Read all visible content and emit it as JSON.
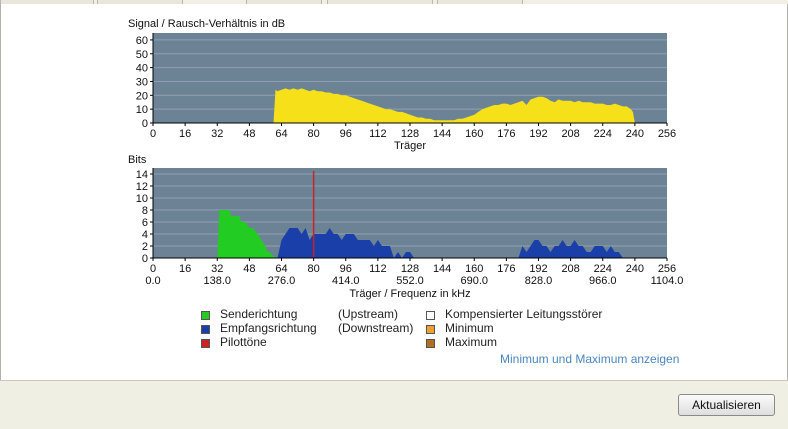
{
  "chart_data": [
    {
      "type": "area",
      "title": "Signal / Rausch-Verhältnis in dB",
      "xlabel": "Träger",
      "ylabel": "",
      "xlim": [
        0,
        256
      ],
      "ylim": [
        0,
        65
      ],
      "x_ticks": [
        0,
        16,
        32,
        48,
        64,
        80,
        96,
        112,
        128,
        144,
        160,
        176,
        192,
        208,
        224,
        240,
        256
      ],
      "y_ticks": [
        0,
        10,
        20,
        30,
        40,
        50,
        60
      ],
      "grid": true,
      "series": [
        {
          "color": "#f5e01a",
          "x": [
            0,
            60,
            61,
            62,
            64,
            66,
            68,
            70,
            72,
            74,
            76,
            78,
            80,
            82,
            84,
            86,
            88,
            90,
            92,
            94,
            96,
            98,
            100,
            102,
            104,
            106,
            108,
            110,
            112,
            114,
            116,
            118,
            120,
            122,
            124,
            126,
            128,
            130,
            132,
            134,
            136,
            138,
            140,
            142,
            144,
            146,
            148,
            150,
            152,
            154,
            156,
            158,
            160,
            162,
            164,
            166,
            168,
            170,
            172,
            174,
            176,
            178,
            180,
            182,
            184,
            186,
            188,
            190,
            192,
            194,
            196,
            198,
            200,
            202,
            204,
            206,
            208,
            210,
            212,
            214,
            216,
            218,
            220,
            222,
            224,
            226,
            228,
            230,
            232,
            234,
            236,
            238,
            239,
            240,
            256
          ],
          "values": [
            0,
            0,
            24,
            23,
            24,
            25,
            24,
            25,
            24,
            25,
            24,
            23,
            24,
            23,
            23,
            22,
            22,
            21,
            21,
            20,
            20,
            19,
            18,
            17,
            16,
            15,
            14,
            13,
            12,
            11,
            10,
            10,
            9,
            8,
            8,
            7,
            6,
            5,
            4,
            4,
            3,
            3,
            2,
            2,
            2,
            2,
            2,
            2,
            3,
            3,
            4,
            5,
            6,
            8,
            10,
            11,
            12,
            13,
            13,
            14,
            14,
            13,
            14,
            15,
            16,
            13,
            17,
            18,
            19,
            19,
            18,
            16,
            15,
            17,
            16,
            16,
            16,
            15,
            16,
            15,
            15,
            15,
            14,
            14,
            14,
            13,
            13,
            14,
            13,
            12,
            12,
            10,
            8,
            0,
            0
          ]
        }
      ]
    },
    {
      "type": "area",
      "title": "Bits",
      "xlabel": "Träger / Frequenz in kHz",
      "ylabel": "",
      "xlim": [
        0,
        256
      ],
      "ylim": [
        0,
        15
      ],
      "x_ticks": [
        0,
        16,
        32,
        48,
        64,
        80,
        96,
        112,
        128,
        144,
        160,
        176,
        192,
        208,
        224,
        240,
        256
      ],
      "freq_ticks": [
        "0.0",
        "138.0",
        "276.0",
        "414.0",
        "552.0",
        "690.0",
        "828.0",
        "966.0",
        "1104.0"
      ],
      "y_ticks": [
        0,
        2,
        4,
        6,
        8,
        10,
        12,
        14
      ],
      "grid": true,
      "series": [
        {
          "name": "Senderichtung",
          "color": "#22cc22",
          "x": [
            32,
            33,
            38,
            39,
            43,
            44,
            46,
            48,
            50,
            52,
            54,
            56,
            57,
            58,
            61,
            62
          ],
          "values": [
            0,
            8,
            8,
            7,
            7,
            6,
            6,
            5,
            5,
            4,
            3,
            2,
            1,
            1,
            0,
            0
          ]
        },
        {
          "name": "Empfangsrichtung",
          "color": "#1a3fa8",
          "x": [
            62,
            64,
            66,
            68,
            70,
            72,
            74,
            76,
            78,
            80,
            82,
            84,
            86,
            88,
            90,
            92,
            94,
            96,
            98,
            100,
            102,
            104,
            106,
            108,
            110,
            112,
            114,
            116,
            118,
            120,
            122,
            124,
            126,
            128,
            130,
            132
          ],
          "values": [
            0,
            3,
            4,
            5,
            5,
            5,
            4,
            5,
            3,
            4,
            4,
            4,
            4,
            5,
            4,
            4,
            3,
            4,
            4,
            4,
            3,
            3,
            3,
            3,
            2,
            3,
            2,
            2,
            2,
            0,
            1,
            0,
            1,
            1,
            0,
            0
          ]
        },
        {
          "name": "Empfangsrichtung",
          "color": "#1a3fa8",
          "x": [
            182,
            184,
            186,
            188,
            190,
            192,
            194,
            196,
            198,
            200,
            202,
            204,
            206,
            208,
            210,
            212,
            214,
            216,
            218,
            220,
            222,
            224,
            226,
            228,
            230,
            232,
            234
          ],
          "values": [
            0,
            2,
            1,
            2,
            3,
            3,
            2,
            2,
            1,
            2,
            2,
            3,
            2,
            2,
            3,
            2,
            2,
            1,
            1,
            2,
            2,
            2,
            1,
            2,
            1,
            1,
            0
          ]
        }
      ],
      "pilot": {
        "name": "Pilottöne",
        "x": 80,
        "color": "#cc2222"
      }
    }
  ],
  "legend": [
    {
      "label": "Senderichtung",
      "note": "(Upstream)",
      "color": "#22cc22"
    },
    {
      "label": "Empfangsrichtung",
      "note": "(Downstream)",
      "color": "#1a3fa8"
    },
    {
      "label": "Pilottöne",
      "note": "",
      "color": "#cc2222"
    },
    {
      "label": "Kompensierter Leitungsstörer",
      "color": "#ffffff"
    },
    {
      "label": "Minimum",
      "color": "#f0a030"
    },
    {
      "label": "Maximum",
      "color": "#b07020"
    }
  ],
  "link_label": "Minimum und Maximum anzeigen",
  "button_label": "Aktualisieren"
}
